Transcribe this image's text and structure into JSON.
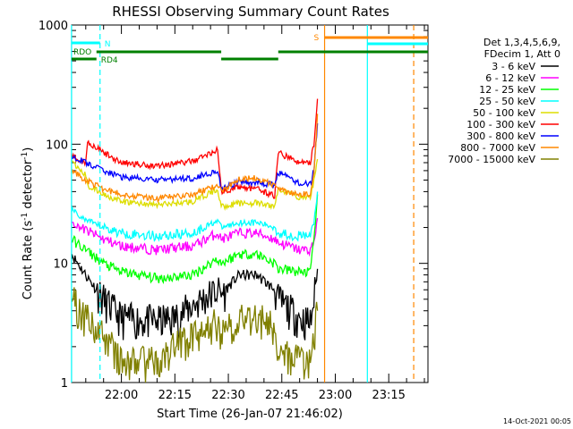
{
  "chart_data": {
    "type": "line",
    "title": "RHESSI Observing Summary Count Rates",
    "xlabel": "Start Time (26-Jan-07 21:46:02)",
    "ylabel_main": "Count Rate (s",
    "ylabel_sup1": "-1",
    "ylabel_mid": " detector",
    "ylabel_sup2": "-1",
    "ylabel_end": ")",
    "y_scale": "log",
    "ylim": [
      1,
      1000
    ],
    "xlim": [
      "21:46:02",
      "23:26:00"
    ],
    "x_ticks": [
      "22:00",
      "22:15",
      "22:30",
      "22:45",
      "23:00",
      "23:15"
    ],
    "y_ticks": [
      "1",
      "10",
      "100",
      "1000"
    ],
    "legend_header": [
      "Det 1,3,4,5,6,9,",
      "FDecim 1, Att 0"
    ],
    "legend_position": "right",
    "series": [
      {
        "name": "3 - 6 keV",
        "color": "#000000",
        "points": [
          [
            "21:46",
            12
          ],
          [
            "21:50",
            8
          ],
          [
            "21:55",
            5
          ],
          [
            "22:00",
            3.5
          ],
          [
            "22:10",
            3.3
          ],
          [
            "22:15",
            3.5
          ],
          [
            "22:20",
            4.5
          ],
          [
            "22:27",
            6
          ],
          [
            "22:28",
            5.5
          ],
          [
            "22:33",
            8
          ],
          [
            "22:38",
            8
          ],
          [
            "22:43",
            6
          ],
          [
            "22:44",
            5
          ],
          [
            "22:50",
            3.5
          ],
          [
            "22:53",
            3.2
          ],
          [
            "22:54",
            5
          ],
          [
            "22:55",
            9
          ]
        ]
      },
      {
        "name": "6 - 12 keV",
        "color": "#ff00ff",
        "points": [
          [
            "21:46",
            22
          ],
          [
            "21:50",
            19
          ],
          [
            "21:55",
            16
          ],
          [
            "22:00",
            14
          ],
          [
            "22:10",
            13
          ],
          [
            "22:20",
            14
          ],
          [
            "22:27",
            18
          ],
          [
            "22:28",
            16
          ],
          [
            "22:33",
            18
          ],
          [
            "22:38",
            18
          ],
          [
            "22:43",
            16
          ],
          [
            "22:44",
            15
          ],
          [
            "22:50",
            13
          ],
          [
            "22:53",
            13
          ],
          [
            "22:54",
            15
          ],
          [
            "22:55",
            24
          ]
        ]
      },
      {
        "name": "12 - 25 keV",
        "color": "#00ff00",
        "points": [
          [
            "21:46",
            16
          ],
          [
            "21:50",
            13
          ],
          [
            "21:55",
            10
          ],
          [
            "22:00",
            8.5
          ],
          [
            "22:10",
            7.5
          ],
          [
            "22:20",
            8
          ],
          [
            "22:27",
            11
          ],
          [
            "22:28",
            10
          ],
          [
            "22:33",
            12
          ],
          [
            "22:38",
            12
          ],
          [
            "22:43",
            10
          ],
          [
            "22:44",
            9
          ],
          [
            "22:50",
            8.5
          ],
          [
            "22:53",
            8.5
          ],
          [
            "22:54",
            15
          ],
          [
            "22:55",
            38
          ]
        ]
      },
      {
        "name": "25 - 50 keV",
        "color": "#00ffff",
        "points": [
          [
            "21:46",
            28
          ],
          [
            "21:50",
            23
          ],
          [
            "21:55",
            20
          ],
          [
            "22:00",
            18
          ],
          [
            "22:10",
            17
          ],
          [
            "22:20",
            18
          ],
          [
            "22:27",
            23
          ],
          [
            "22:28",
            20
          ],
          [
            "22:33",
            22
          ],
          [
            "22:38",
            22
          ],
          [
            "22:43",
            20
          ],
          [
            "22:44",
            18
          ],
          [
            "22:50",
            17
          ],
          [
            "22:53",
            17
          ],
          [
            "22:54",
            22
          ],
          [
            "22:55",
            40
          ]
        ]
      },
      {
        "name": "50 - 100 keV",
        "color": "#dddd00",
        "points": [
          [
            "21:46",
            70
          ],
          [
            "21:50",
            55
          ],
          [
            "21:50.5",
            45
          ],
          [
            "21:55",
            38
          ],
          [
            "22:00",
            33
          ],
          [
            "22:10",
            31
          ],
          [
            "22:20",
            33
          ],
          [
            "22:27",
            42
          ],
          [
            "22:28",
            30
          ],
          [
            "22:33",
            32
          ],
          [
            "22:38",
            32
          ],
          [
            "22:43",
            30
          ],
          [
            "22:44",
            42
          ],
          [
            "22:50",
            36
          ],
          [
            "22:53",
            36
          ],
          [
            "22:54",
            50
          ],
          [
            "22:55",
            75
          ]
        ]
      },
      {
        "name": "100 - 300 keV",
        "color": "#ff0000",
        "points": [
          [
            "21:46",
            80
          ],
          [
            "21:50",
            70
          ],
          [
            "21:50.5",
            105
          ],
          [
            "21:55",
            85
          ],
          [
            "22:00",
            70
          ],
          [
            "22:10",
            66
          ],
          [
            "22:20",
            72
          ],
          [
            "22:27",
            90
          ],
          [
            "22:28",
            40
          ],
          [
            "22:33",
            44
          ],
          [
            "22:38",
            42
          ],
          [
            "22:43",
            37
          ],
          [
            "22:44",
            85
          ],
          [
            "22:50",
            70
          ],
          [
            "22:53",
            70
          ],
          [
            "22:54",
            100
          ],
          [
            "22:55",
            240
          ]
        ]
      },
      {
        "name": "300 - 800 keV",
        "color": "#0000ff",
        "points": [
          [
            "21:46",
            80
          ],
          [
            "21:50",
            70
          ],
          [
            "21:55",
            60
          ],
          [
            "22:00",
            53
          ],
          [
            "22:10",
            50
          ],
          [
            "22:20",
            52
          ],
          [
            "22:27",
            60
          ],
          [
            "22:28",
            42
          ],
          [
            "22:33",
            48
          ],
          [
            "22:38",
            48
          ],
          [
            "22:43",
            45
          ],
          [
            "22:44",
            58
          ],
          [
            "22:50",
            47
          ],
          [
            "22:53",
            46
          ],
          [
            "22:54",
            60
          ],
          [
            "22:55",
            150
          ]
        ]
      },
      {
        "name": "800 - 7000 keV",
        "color": "#ff8800",
        "points": [
          [
            "21:46",
            60
          ],
          [
            "21:50",
            50
          ],
          [
            "21:55",
            42
          ],
          [
            "22:00",
            38
          ],
          [
            "22:10",
            35
          ],
          [
            "22:20",
            38
          ],
          [
            "22:27",
            45
          ],
          [
            "22:28",
            40
          ],
          [
            "22:33",
            52
          ],
          [
            "22:38",
            52
          ],
          [
            "22:43",
            45
          ],
          [
            "22:44",
            42
          ],
          [
            "22:50",
            38
          ],
          [
            "22:53",
            38
          ],
          [
            "22:54",
            55
          ],
          [
            "22:55",
            180
          ]
        ]
      },
      {
        "name": "7000 - 15000 keV",
        "color": "#808000",
        "points": [
          [
            "21:46",
            5
          ],
          [
            "21:50",
            3.5
          ],
          [
            "21:55",
            2.5
          ],
          [
            "22:00",
            1.5
          ],
          [
            "22:10",
            1.5
          ],
          [
            "22:15",
            2
          ],
          [
            "22:20",
            2.5
          ],
          [
            "22:27",
            3.2
          ],
          [
            "22:28",
            2.5
          ],
          [
            "22:33",
            3.5
          ],
          [
            "22:38",
            3.5
          ],
          [
            "22:43",
            3
          ],
          [
            "22:44",
            2
          ],
          [
            "22:50",
            1.5
          ],
          [
            "22:53",
            1.5
          ],
          [
            "22:54",
            2.5
          ],
          [
            "22:55",
            4
          ]
        ]
      }
    ],
    "flag_bars": [
      {
        "label": "N",
        "color": "#00ffff",
        "segments": [
          [
            "21:46",
            "21:54"
          ]
        ]
      },
      {
        "label": "RDO",
        "color": "#008000",
        "segments": [
          [
            "21:46",
            "21:53"
          ]
        ]
      },
      {
        "label": "RD4",
        "color": "#008000",
        "segments": [
          [
            "21:53",
            "22:28"
          ],
          [
            "22:28",
            "22:44"
          ],
          [
            "22:44",
            "23:26"
          ]
        ]
      },
      {
        "label": "S",
        "color": "#ff8800",
        "segments": [
          [
            "22:57",
            "23:26"
          ]
        ]
      },
      {
        "label": "",
        "color": "#00ffff",
        "segments": [
          [
            "23:09",
            "23:26"
          ]
        ]
      }
    ],
    "vertical_markers": [
      {
        "time": "21:46",
        "color": "#00ffff",
        "style": "solid"
      },
      {
        "time": "21:54",
        "color": "#00ffff",
        "style": "dashed"
      },
      {
        "time": "22:57",
        "color": "#ff8800",
        "style": "solid"
      },
      {
        "time": "23:09",
        "color": "#00ffff",
        "style": "solid"
      },
      {
        "time": "23:22",
        "color": "#ff8800",
        "style": "dashed"
      }
    ]
  },
  "footer": {
    "timestamp": "14-Oct-2021 00:05"
  }
}
